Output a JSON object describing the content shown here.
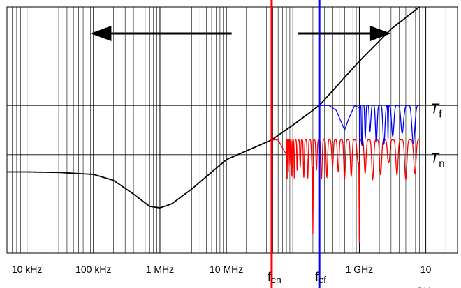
{
  "chart_data": {
    "type": "line",
    "title": "",
    "xlabel": "",
    "ylabel": "",
    "x_scale": "log",
    "xlim_hz": [
      5000,
      30000000000
    ],
    "ylim": [
      0,
      5
    ],
    "grid": true,
    "x_ticks": [
      {
        "value": 10000,
        "label": "10 kHz"
      },
      {
        "value": 100000,
        "label": "100 kHz"
      },
      {
        "value": 1000000,
        "label": "1 MHz"
      },
      {
        "value": 10000000,
        "label": "10 MHz"
      },
      {
        "value": 1000000000,
        "label": "1 GHz"
      },
      {
        "value": 10000000000,
        "label": "10"
      }
    ],
    "x_tick_overflow_text": "GHz",
    "markers": [
      {
        "name": "f_cn",
        "main": "f",
        "sub": "cn",
        "x": 48000000,
        "color": "#ff0000"
      },
      {
        "name": "f_cf",
        "main": "f",
        "sub": "cf",
        "x": 250000000,
        "color": "#0000ff"
      }
    ],
    "arrows": [
      {
        "direction": "left",
        "from_x": 12000000,
        "to_x": 90000
      },
      {
        "direction": "right",
        "from_x": 120000000,
        "to_x": 3000000000
      }
    ],
    "curve_labels": [
      {
        "main": "T",
        "sub": "f",
        "series": "far-end",
        "y": 2.95
      },
      {
        "main": "T",
        "sub": "n",
        "series": "near-end",
        "y": 1.95
      }
    ],
    "series": [
      {
        "key": "upper-bound",
        "color": "#000000",
        "points": [
          [
            5000,
            1.65
          ],
          [
            10000,
            1.65
          ],
          [
            30000,
            1.64
          ],
          [
            100000,
            1.6
          ],
          [
            200000,
            1.48
          ],
          [
            400000,
            1.2
          ],
          [
            700000,
            0.95
          ],
          [
            1000000,
            0.92
          ],
          [
            1500000,
            1.0
          ],
          [
            3000000,
            1.3
          ],
          [
            10000000,
            1.9
          ],
          [
            48000000,
            2.3
          ],
          [
            100000000,
            2.6
          ],
          [
            250000000,
            3.0
          ],
          [
            1000000000,
            3.9
          ],
          [
            3000000000,
            4.55
          ],
          [
            8000000000,
            5.0
          ]
        ]
      },
      {
        "key": "far-end",
        "color": "#0000ff",
        "envelope": 3.0,
        "deep_nulls": [
          [
            1100000000,
            2.15
          ],
          [
            2700000000,
            2.3
          ]
        ],
        "points": [
          [
            100000000,
            2.6
          ],
          [
            250000000,
            3.0
          ],
          [
            350000000,
            3.0
          ],
          [
            450000000,
            2.9
          ],
          [
            600000000,
            2.5
          ],
          [
            700000000,
            2.75
          ],
          [
            850000000,
            3.0
          ],
          [
            1000000000,
            2.95
          ]
        ]
      },
      {
        "key": "near-end",
        "color": "#ff0000",
        "envelope": 2.3,
        "deep_nulls": [
          [
            60000000,
            0.3
          ],
          [
            200000000,
            0.35
          ],
          [
            1000000000,
            0.0
          ]
        ],
        "points": [
          [
            10000000,
            1.9
          ],
          [
            48000000,
            2.3
          ],
          [
            60000000,
            2.3
          ],
          [
            80000000,
            2.0
          ]
        ]
      }
    ]
  }
}
